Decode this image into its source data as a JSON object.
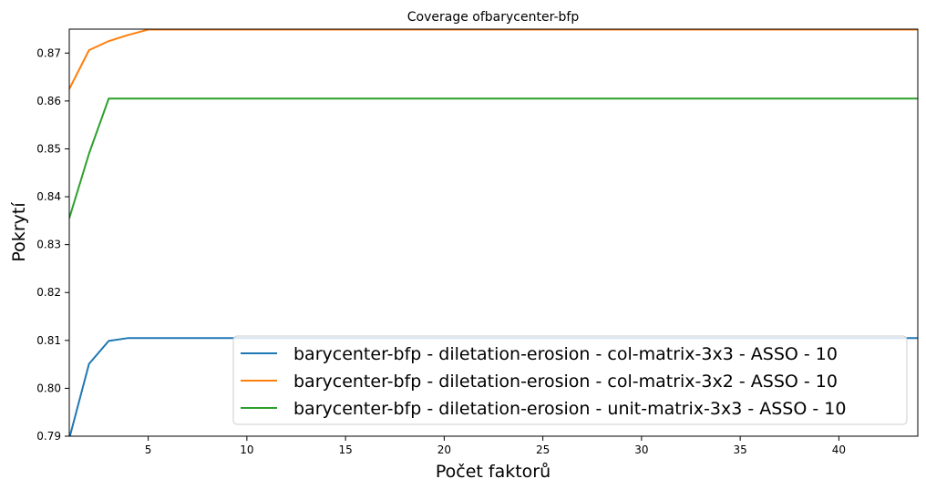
{
  "chart_data": {
    "type": "line",
    "title": "Coverage ofbarycenter-bfp",
    "xlabel": "Počet faktorů",
    "ylabel": "Pokrytí",
    "xlim": [
      1,
      44
    ],
    "ylim": [
      0.79,
      0.875
    ],
    "xticks": [
      5,
      10,
      15,
      20,
      25,
      30,
      35,
      40
    ],
    "yticks": [
      0.79,
      0.8,
      0.81,
      0.82,
      0.83,
      0.84,
      0.85,
      0.86,
      0.87
    ],
    "grid": false,
    "legend_position": "lower-right",
    "series": [
      {
        "name": "barycenter-bfp - diletation-erosion - col-matrix-3x3 - ASSO - 10",
        "color": "#1f77b4",
        "x": [
          1,
          2,
          3,
          4,
          5,
          44
        ],
        "y": [
          0.7895,
          0.8051,
          0.8099,
          0.8105,
          0.8105,
          0.8105
        ]
      },
      {
        "name": "barycenter-bfp - diletation-erosion - col-matrix-3x2 - ASSO - 10",
        "color": "#ff7f0e",
        "x": [
          1,
          2,
          3,
          4,
          5,
          44
        ],
        "y": [
          0.8625,
          0.8706,
          0.8725,
          0.8738,
          0.8749,
          0.8749
        ]
      },
      {
        "name": "barycenter-bfp - diletation-erosion - unit-matrix-3x3 - ASSO - 10",
        "color": "#2ca02c",
        "x": [
          1,
          2,
          3,
          44
        ],
        "y": [
          0.8355,
          0.849,
          0.8605,
          0.8605
        ]
      }
    ]
  }
}
